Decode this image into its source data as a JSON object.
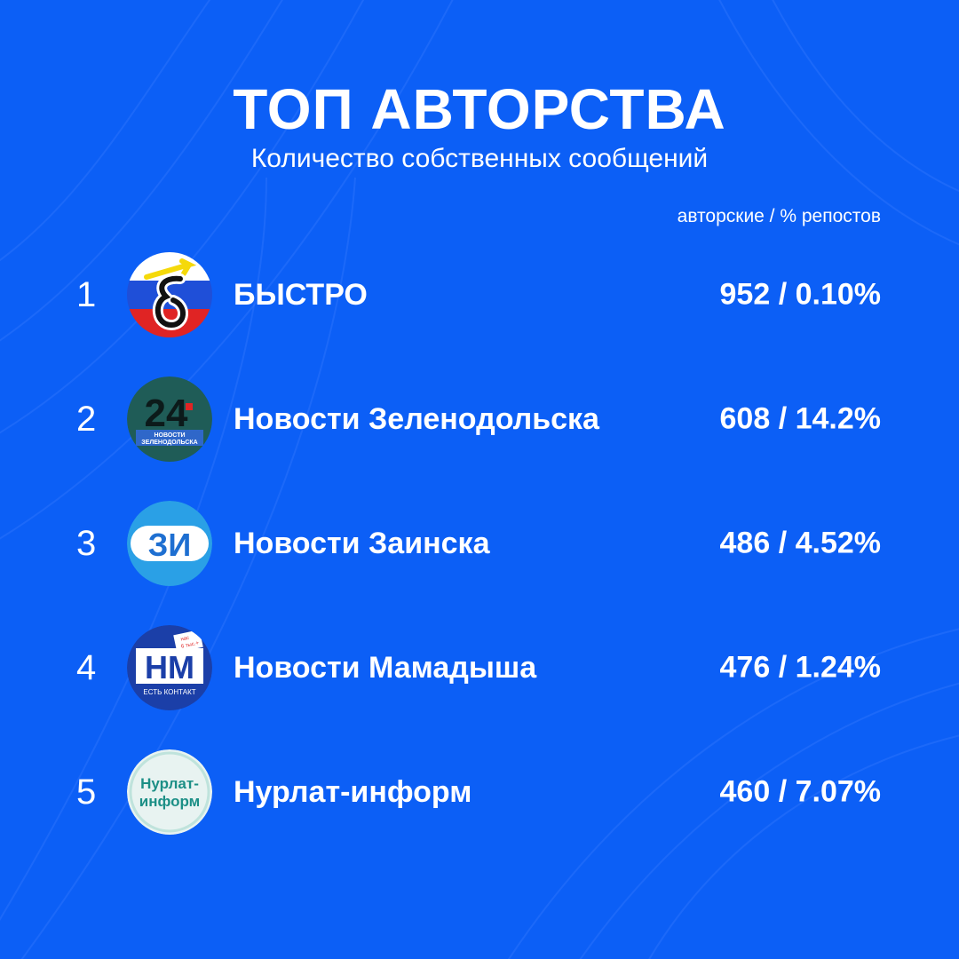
{
  "title": "ТОП АВТОРСТВА",
  "subtitle": "Количество собственных сообщений",
  "column_header": "авторские / % репостов",
  "colors": {
    "background": "#0c5ff6",
    "text": "#ffffff"
  },
  "rows": [
    {
      "rank": "1",
      "name": "БЫСТРО",
      "value": "952 / 0.10%",
      "logo": "bystro-logo"
    },
    {
      "rank": "2",
      "name": "Новости Зеленодольска",
      "value": "608 / 14.2%",
      "logo": "zelenodolsk-24-logo",
      "logo_text": {
        "number": "24",
        "caption_1": "НОВОСТИ",
        "caption_2": "ЗЕЛЕНОДОЛЬСКА"
      }
    },
    {
      "rank": "3",
      "name": "Новости Заинска",
      "value": "486 / 4.52%",
      "logo": "zainsk-logo",
      "logo_text": {
        "letters": "ЗИ"
      }
    },
    {
      "rank": "4",
      "name": "Новости Мамадыша",
      "value": "476 / 1.24%",
      "logo": "mamadysh-logo",
      "logo_text": {
        "letters": "НМ",
        "caption": "ЕСТЬ КОНТАКТ",
        "sticker_1": "нас",
        "sticker_2": "6 тыс.+"
      }
    },
    {
      "rank": "5",
      "name": "Нурлат-информ",
      "value": "460 / 7.07%",
      "logo": "nurlat-logo",
      "logo_text": {
        "line_1": "Нурлат-",
        "line_2": "информ"
      }
    }
  ]
}
